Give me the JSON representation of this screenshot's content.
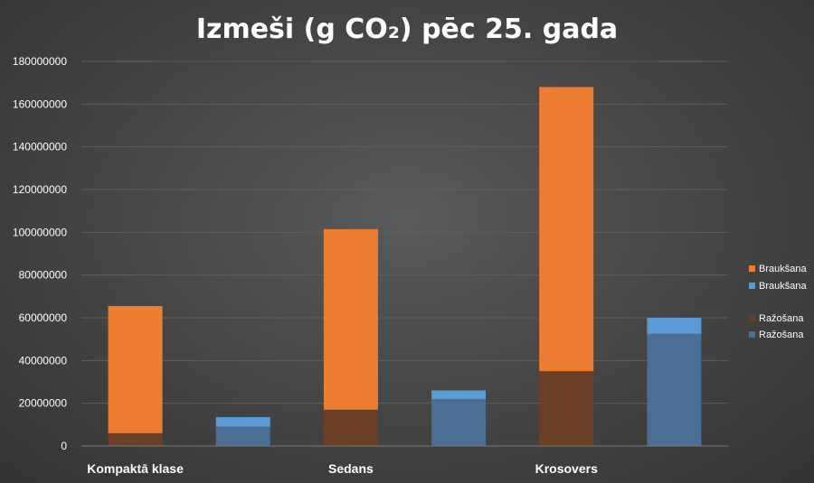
{
  "chart_data": {
    "type": "bar",
    "stacked": true,
    "title": "Izmeši (g CO₂) pēc 25. gada",
    "categories": [
      "Kompaktā klase",
      "Sedans",
      "Krosovers"
    ],
    "ylim": [
      0,
      180000000
    ],
    "yticks": [
      "0",
      "20000000",
      "40000000",
      "60000000",
      "80000000",
      "100000000",
      "120000000",
      "140000000",
      "160000000",
      "180000000"
    ],
    "grid": true,
    "legend_position": "right",
    "groups": [
      {
        "segments": [
          {
            "name": "Ražošana",
            "color": "#6b3f26",
            "values": [
              6000000,
              17000000,
              35000000
            ]
          },
          {
            "name": "Braukšana",
            "color": "#ed7d31",
            "values": [
              59500000,
              84500000,
              133000000
            ]
          }
        ]
      },
      {
        "segments": [
          {
            "name": "Ražošana",
            "color": "#4a6e94",
            "values": [
              9000000,
              22000000,
              52500000
            ]
          },
          {
            "name": "Braukšana",
            "color": "#5b9bd5",
            "values": [
              4500000,
              4000000,
              7500000
            ]
          }
        ]
      }
    ],
    "legend": [
      {
        "label": "Braukšana",
        "color": "#ed7d31"
      },
      {
        "label": "Braukšana",
        "color": "#5b9bd5"
      },
      {
        "label": "Ražošana",
        "color": "#6b3f26"
      },
      {
        "label": "Ražošana",
        "color": "#4a6e94"
      }
    ]
  }
}
